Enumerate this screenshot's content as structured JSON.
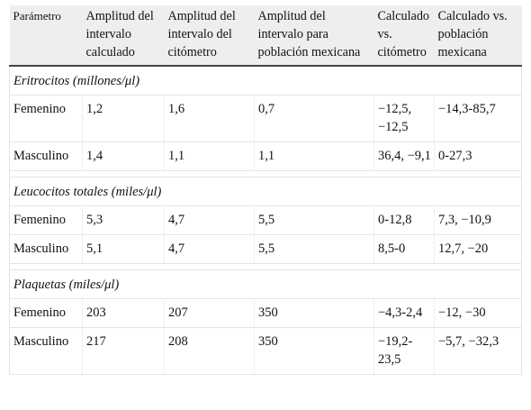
{
  "table": {
    "headers": [
      "Parámetro",
      "Amplitud del intervalo calculado",
      "Amplitud del intervalo del citómetro",
      "Amplitud del intervalo para población mexicana",
      "Calculado vs. citómetro",
      "Calculado vs. población mexicana"
    ],
    "sections": [
      {
        "title": "Eritrocitos (millones/μl)",
        "rows": [
          [
            "Femenino",
            "1,2",
            "1,6",
            "0,7",
            "−12,5, −12,5",
            "−14,3-85,7"
          ],
          [
            "Masculino",
            "1,4",
            "1,1",
            "1,1",
            "36,4, −9,1",
            "0-27,3"
          ]
        ]
      },
      {
        "title": "Leucocitos totales (miles/μl)",
        "rows": [
          [
            "Femenino",
            "5,3",
            "4,7",
            "5,5",
            "0-12,8",
            "7,3, −10,9"
          ],
          [
            "Masculino",
            "5,1",
            "4,7",
            "5,5",
            "8,5-0",
            "12,7, −20"
          ]
        ]
      },
      {
        "title": "Plaquetas (miles/μl)",
        "rows": [
          [
            "Femenino",
            "203",
            "207",
            "350",
            "−4,3-2,4",
            "−12, −30"
          ],
          [
            "Masculino",
            "217",
            "208",
            "350",
            "−19,2-23,5",
            "−5,7, −32,3"
          ]
        ]
      }
    ]
  }
}
